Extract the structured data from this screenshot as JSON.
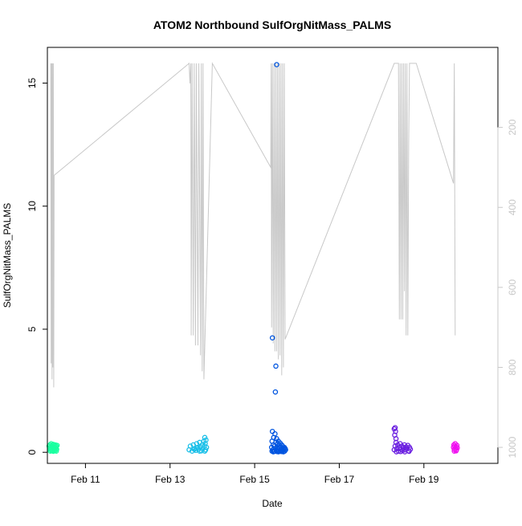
{
  "chart_data": {
    "type": "scatter",
    "title": "ATOM2 Northbound SulfOrgNitMass_PALMS",
    "xlabel": "Date",
    "ylabel": "SulfOrgNitMass_PALMS",
    "x_unit": "days (February)",
    "xlim": [
      10.1,
      20.75
    ],
    "ylim": [
      -0.45,
      16.45
    ],
    "x_ticks": [
      {
        "value": 11,
        "label": "Feb 11"
      },
      {
        "value": 13,
        "label": "Feb 13"
      },
      {
        "value": 15,
        "label": "Feb 15"
      },
      {
        "value": 17,
        "label": "Feb 17"
      },
      {
        "value": 19,
        "label": "Feb 19"
      }
    ],
    "y_ticks": [
      {
        "value": 0,
        "label": "0"
      },
      {
        "value": 5,
        "label": "5"
      },
      {
        "value": 10,
        "label": "10"
      },
      {
        "value": 15,
        "label": "15"
      }
    ],
    "secondary_axis": {
      "side": "right",
      "color": "#c8c8c8",
      "reversed": true,
      "range": [
        1040,
        0
      ],
      "ticks": [
        {
          "value": 200,
          "label": "200"
        },
        {
          "value": 400,
          "label": "400"
        },
        {
          "value": 600,
          "label": "600"
        },
        {
          "value": 800,
          "label": "800"
        },
        {
          "value": 1000,
          "label": "1000"
        }
      ]
    },
    "pressure_trace": {
      "color": "#c8c8c8",
      "points": [
        [
          10.18,
          40
        ],
        [
          10.19,
          790
        ],
        [
          10.2,
          40
        ],
        [
          10.21,
          830
        ],
        [
          10.22,
          40
        ],
        [
          10.23,
          800
        ],
        [
          10.24,
          40
        ],
        [
          10.25,
          850
        ],
        [
          10.26,
          320
        ],
        [
          13.45,
          40
        ],
        [
          13.47,
          90
        ],
        [
          13.49,
          40
        ],
        [
          13.5,
          720
        ],
        [
          13.52,
          40
        ],
        [
          13.55,
          720
        ],
        [
          13.57,
          40
        ],
        [
          13.6,
          745
        ],
        [
          13.62,
          40
        ],
        [
          13.66,
          745
        ],
        [
          13.68,
          40
        ],
        [
          13.72,
          770
        ],
        [
          13.74,
          40
        ],
        [
          13.76,
          810
        ],
        [
          13.78,
          40
        ],
        [
          13.8,
          830
        ],
        [
          14.0,
          40
        ],
        [
          15.38,
          300
        ],
        [
          15.39,
          40
        ],
        [
          15.4,
          700
        ],
        [
          15.42,
          40
        ],
        [
          15.44,
          740
        ],
        [
          15.46,
          40
        ],
        [
          15.48,
          760
        ],
        [
          15.5,
          40
        ],
        [
          15.52,
          760
        ],
        [
          15.54,
          40
        ],
        [
          15.56,
          780
        ],
        [
          15.58,
          40
        ],
        [
          15.6,
          770
        ],
        [
          15.62,
          40
        ],
        [
          15.64,
          820
        ],
        [
          15.66,
          40
        ],
        [
          15.68,
          800
        ],
        [
          15.7,
          40
        ],
        [
          15.72,
          730
        ],
        [
          18.3,
          40
        ],
        [
          18.4,
          40
        ],
        [
          18.42,
          680
        ],
        [
          18.44,
          40
        ],
        [
          18.46,
          680
        ],
        [
          18.48,
          40
        ],
        [
          18.5,
          680
        ],
        [
          18.52,
          40
        ],
        [
          18.54,
          610
        ],
        [
          18.56,
          40
        ],
        [
          18.58,
          720
        ],
        [
          18.6,
          40
        ],
        [
          18.62,
          720
        ],
        [
          18.64,
          240
        ],
        [
          18.66,
          40
        ],
        [
          18.8,
          40
        ],
        [
          18.82,
          40
        ],
        [
          19.7,
          340
        ],
        [
          19.72,
          40
        ],
        [
          19.74,
          720
        ]
      ]
    },
    "series": [
      {
        "color": "#1affa0",
        "points": [
          [
            10.14,
            0.25
          ],
          [
            10.15,
            0.18
          ],
          [
            10.16,
            0.3
          ],
          [
            10.17,
            0.12
          ],
          [
            10.18,
            0.22
          ],
          [
            10.19,
            0.35
          ],
          [
            10.2,
            0.15
          ],
          [
            10.21,
            0.28
          ],
          [
            10.22,
            0.08
          ],
          [
            10.23,
            0.2
          ],
          [
            10.24,
            0.32
          ],
          [
            10.25,
            0.14
          ],
          [
            10.26,
            0.26
          ],
          [
            10.27,
            0.1
          ],
          [
            10.28,
            0.22
          ],
          [
            10.29,
            0.3
          ],
          [
            10.3,
            0.18
          ],
          [
            10.31,
            0.24
          ],
          [
            10.32,
            0.12
          ],
          [
            10.33,
            0.28
          ],
          [
            10.17,
            0.05
          ],
          [
            10.2,
            0.06
          ],
          [
            10.24,
            0.04
          ],
          [
            10.28,
            0.07
          ],
          [
            10.31,
            0.05
          ]
        ]
      },
      {
        "color": "#19bfe8",
        "points": [
          [
            13.45,
            0.1
          ],
          [
            13.48,
            0.25
          ],
          [
            13.52,
            0.05
          ],
          [
            13.55,
            0.3
          ],
          [
            13.58,
            0.15
          ],
          [
            13.61,
            0.08
          ],
          [
            13.63,
            0.35
          ],
          [
            13.65,
            0.2
          ],
          [
            13.67,
            0.12
          ],
          [
            13.7,
            0.4
          ],
          [
            13.72,
            0.22
          ],
          [
            13.74,
            0.06
          ],
          [
            13.76,
            0.3
          ],
          [
            13.78,
            0.15
          ],
          [
            13.8,
            0.45
          ],
          [
            13.81,
            0.25
          ],
          [
            13.82,
            0.6
          ],
          [
            13.83,
            0.35
          ],
          [
            13.84,
            0.1
          ],
          [
            13.85,
            0.5
          ],
          [
            13.86,
            0.2
          ],
          [
            13.7,
            0.05
          ],
          [
            13.62,
            0.18
          ],
          [
            13.57,
            0.12
          ],
          [
            13.82,
            0.05
          ]
        ]
      },
      {
        "color": "#0055e0",
        "points": [
          [
            15.52,
            15.75
          ],
          [
            15.42,
            4.65
          ],
          [
            15.5,
            3.5
          ],
          [
            15.49,
            2.45
          ],
          [
            15.4,
            0.2
          ],
          [
            15.41,
            0.45
          ],
          [
            15.42,
            0.85
          ],
          [
            15.43,
            0.1
          ],
          [
            15.44,
            0.3
          ],
          [
            15.45,
            0.6
          ],
          [
            15.46,
            0.05
          ],
          [
            15.47,
            0.25
          ],
          [
            15.48,
            0.75
          ],
          [
            15.49,
            0.15
          ],
          [
            15.5,
            0.4
          ],
          [
            15.51,
            0.08
          ],
          [
            15.52,
            0.55
          ],
          [
            15.53,
            0.2
          ],
          [
            15.54,
            0.35
          ],
          [
            15.55,
            0.12
          ],
          [
            15.56,
            0.45
          ],
          [
            15.57,
            0.05
          ],
          [
            15.58,
            0.28
          ],
          [
            15.59,
            0.18
          ],
          [
            15.6,
            0.38
          ],
          [
            15.61,
            0.1
          ],
          [
            15.62,
            0.22
          ],
          [
            15.63,
            0.06
          ],
          [
            15.64,
            0.3
          ],
          [
            15.65,
            0.15
          ],
          [
            15.66,
            0.25
          ],
          [
            15.67,
            0.08
          ],
          [
            15.68,
            0.18
          ],
          [
            15.69,
            0.12
          ],
          [
            15.7,
            0.2
          ],
          [
            15.71,
            0.05
          ],
          [
            15.72,
            0.15
          ],
          [
            15.73,
            0.1
          ],
          [
            15.41,
            0.05
          ],
          [
            15.44,
            0.02
          ],
          [
            15.47,
            0.04
          ],
          [
            15.53,
            0.03
          ],
          [
            15.56,
            0.02
          ],
          [
            15.6,
            0.04
          ],
          [
            15.64,
            0.03
          ],
          [
            15.68,
            0.02
          ]
        ]
      },
      {
        "color": "#6a1ee0",
        "points": [
          [
            18.3,
            0.95
          ],
          [
            18.32,
            1.0
          ],
          [
            18.33,
            0.85
          ],
          [
            18.31,
            0.7
          ],
          [
            18.34,
            0.55
          ],
          [
            18.3,
            0.1
          ],
          [
            18.32,
            0.25
          ],
          [
            18.34,
            0.4
          ],
          [
            18.36,
            0.15
          ],
          [
            18.38,
            0.3
          ],
          [
            18.4,
            0.05
          ],
          [
            18.42,
            0.2
          ],
          [
            18.44,
            0.35
          ],
          [
            18.46,
            0.12
          ],
          [
            18.48,
            0.25
          ],
          [
            18.5,
            0.08
          ],
          [
            18.52,
            0.18
          ],
          [
            18.54,
            0.3
          ],
          [
            18.56,
            0.1
          ],
          [
            18.58,
            0.22
          ],
          [
            18.6,
            0.15
          ],
          [
            18.62,
            0.28
          ],
          [
            18.64,
            0.06
          ],
          [
            18.66,
            0.2
          ],
          [
            18.68,
            0.12
          ],
          [
            18.35,
            0.02
          ],
          [
            18.45,
            0.03
          ],
          [
            18.55,
            0.02
          ],
          [
            18.65,
            0.04
          ]
        ]
      },
      {
        "color": "#f00ff0",
        "points": [
          [
            19.7,
            0.2
          ],
          [
            19.71,
            0.3
          ],
          [
            19.72,
            0.12
          ],
          [
            19.73,
            0.25
          ],
          [
            19.74,
            0.35
          ],
          [
            19.75,
            0.15
          ],
          [
            19.76,
            0.22
          ],
          [
            19.77,
            0.1
          ],
          [
            19.78,
            0.28
          ],
          [
            19.79,
            0.18
          ],
          [
            19.72,
            0.05
          ],
          [
            19.76,
            0.06
          ]
        ]
      }
    ],
    "grid": false,
    "legend": "none"
  }
}
